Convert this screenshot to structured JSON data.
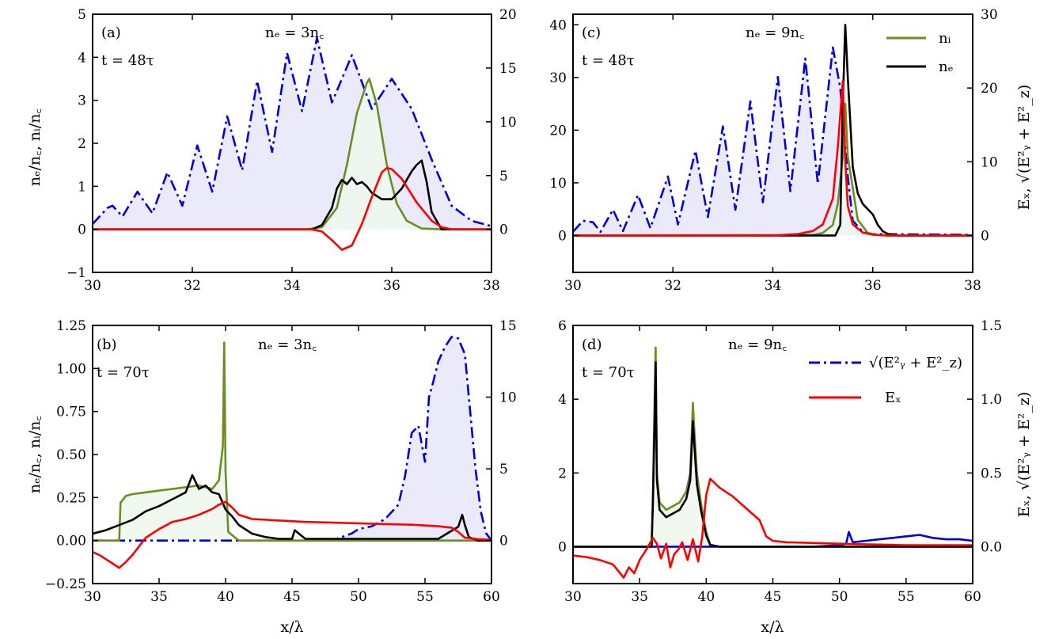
{
  "figure": {
    "xlabel": "x/λ",
    "ylabel_left": "nₑ/n꜀, nᵢ/n꜀",
    "ylabel_right": "Eₓ, √(E²ᵧ + E²_z)"
  },
  "legend_top": {
    "ni": "nᵢ",
    "ne": "nₑ"
  },
  "legend_bottom": {
    "field": "√(E²ᵧ + E²_z)",
    "ex": "Eₓ"
  },
  "colors": {
    "ni": "#6b8e23",
    "ne": "#000000",
    "ex": "#ff0000",
    "field": "#0000dd",
    "field_fill": "#e8e8fb",
    "ni_fill": "#eef7ee"
  },
  "chart_data": [
    {
      "panel": "a",
      "type": "line",
      "label": "(a)",
      "time": "t = 48τ",
      "density": "nₑ = 3n꜀",
      "xlim": [
        30,
        38
      ],
      "ylim_left": [
        -1,
        5
      ],
      "ylim_right": [
        -4,
        20
      ],
      "xticks": [
        30,
        32,
        34,
        36,
        38
      ],
      "yticks_left": [
        -1,
        0,
        1,
        2,
        3,
        4,
        5
      ],
      "yticks_right": [
        0,
        5,
        10,
        15,
        20
      ],
      "series": [
        {
          "name": "√(E²ᵧ + E²_z)",
          "axis": "right",
          "style": "dashdot",
          "fill": true,
          "x": [
            30.0,
            30.3,
            30.4,
            30.6,
            30.9,
            31.2,
            31.5,
            31.8,
            32.1,
            32.4,
            32.7,
            33.0,
            33.3,
            33.6,
            33.9,
            34.2,
            34.5,
            34.8,
            35.2,
            35.6,
            36.0,
            36.4,
            36.8,
            37.2,
            37.6,
            38.0
          ],
          "y": [
            0.5,
            2.0,
            2.2,
            1.2,
            3.5,
            1.5,
            5.3,
            2.2,
            7.8,
            3.5,
            10.5,
            5.5,
            13.8,
            7.2,
            16.4,
            11.0,
            17.8,
            11.8,
            16.2,
            11.2,
            14.0,
            11.2,
            6.5,
            2.2,
            0.8,
            0.3
          ]
        },
        {
          "name": "nᵢ",
          "axis": "left",
          "fill": true,
          "x": [
            30,
            34.3,
            34.6,
            34.9,
            35.1,
            35.3,
            35.5,
            35.55,
            35.7,
            35.9,
            36.1,
            36.3,
            36.6,
            37,
            38
          ],
          "y": [
            0,
            0,
            0.05,
            0.5,
            1.5,
            2.7,
            3.4,
            3.5,
            2.9,
            1.5,
            0.6,
            0.2,
            0.02,
            0,
            0
          ]
        },
        {
          "name": "nₑ",
          "axis": "left",
          "x": [
            30,
            34.4,
            34.6,
            34.8,
            34.9,
            35.0,
            35.1,
            35.2,
            35.3,
            35.4,
            35.5,
            35.6,
            35.8,
            36.0,
            36.2,
            36.4,
            36.5,
            36.6,
            36.7,
            36.8,
            37,
            38
          ],
          "y": [
            0,
            0,
            0.1,
            0.5,
            0.95,
            1.15,
            1.05,
            1.2,
            1.05,
            1.1,
            1.0,
            0.85,
            0.7,
            0.7,
            0.95,
            1.35,
            1.5,
            1.6,
            1.1,
            0.4,
            0,
            0
          ]
        },
        {
          "name": "Eₓ",
          "axis": "right",
          "x": [
            30,
            34.4,
            34.6,
            34.8,
            35.0,
            35.2,
            35.4,
            35.6,
            35.8,
            35.9,
            36.0,
            36.2,
            36.5,
            36.8,
            37.0,
            37.2,
            38
          ],
          "y": [
            0,
            0,
            -0.2,
            -1.0,
            -1.9,
            -1.5,
            0.5,
            3.0,
            5.3,
            5.7,
            5.6,
            4.7,
            2.5,
            0.8,
            0.2,
            0,
            0
          ]
        }
      ]
    },
    {
      "panel": "c",
      "type": "line",
      "label": "(c)",
      "time": "t = 48τ",
      "density": "nₑ = 9n꜀",
      "xlim": [
        30,
        38
      ],
      "ylim_left": [
        -7,
        42
      ],
      "ylim_right": [
        -5,
        30
      ],
      "xticks": [
        30,
        32,
        34,
        36,
        38
      ],
      "yticks_left": [
        0,
        10,
        20,
        30,
        40
      ],
      "yticks_right": [
        0,
        10,
        20,
        30
      ],
      "series": [
        {
          "name": "√(E²ᵧ + E²_z)",
          "axis": "right",
          "style": "dashdot",
          "fill": true,
          "x": [
            30.0,
            30.2,
            30.4,
            30.55,
            30.8,
            31.0,
            31.3,
            31.55,
            31.9,
            32.1,
            32.45,
            32.7,
            33.0,
            33.25,
            33.55,
            33.8,
            34.1,
            34.35,
            34.65,
            34.9,
            35.2,
            35.35,
            35.5,
            35.6,
            35.8,
            36.0,
            38.0
          ],
          "y": [
            0.5,
            2.0,
            1.8,
            0.5,
            3.5,
            0.6,
            5.5,
            1.0,
            8.0,
            1.5,
            11.5,
            2.5,
            14.8,
            3.5,
            18.2,
            4.5,
            21.5,
            6.0,
            24.0,
            7.0,
            25.5,
            20.0,
            8.0,
            2.0,
            0.5,
            0.2,
            0.1
          ]
        },
        {
          "name": "nᵢ",
          "axis": "left",
          "fill": true,
          "x": [
            30,
            34.8,
            35.0,
            35.2,
            35.3,
            35.4,
            35.45,
            35.5,
            35.7,
            35.9,
            36.1,
            36.3,
            38
          ],
          "y": [
            0,
            0.1,
            0.5,
            2,
            6,
            15,
            25,
            15,
            3,
            0.5,
            0.1,
            0,
            0
          ]
        },
        {
          "name": "nₑ",
          "axis": "left",
          "x": [
            30,
            35.25,
            35.35,
            35.4,
            35.45,
            35.5,
            35.6,
            35.7,
            35.8,
            35.9,
            36.0,
            36.1,
            36.2,
            36.3,
            36.5,
            38
          ],
          "y": [
            0,
            0,
            2,
            25,
            40,
            30,
            13,
            8,
            6,
            5,
            4,
            2,
            0.8,
            0.3,
            0,
            0
          ]
        },
        {
          "name": "Eₓ",
          "axis": "right",
          "x": [
            30,
            34.0,
            34.5,
            34.8,
            35.0,
            35.2,
            35.3,
            35.4,
            35.45,
            35.5,
            35.6,
            35.8,
            36.0,
            36.3,
            38
          ],
          "y": [
            0,
            0,
            0.2,
            0.6,
            1.5,
            5.0,
            12.0,
            21.0,
            10.0,
            4.0,
            1.5,
            0.4,
            0.1,
            0,
            0
          ]
        }
      ]
    },
    {
      "panel": "b",
      "type": "line",
      "label": "(b)",
      "time": "t = 70τ",
      "density": "nₑ = 3n꜀",
      "xlim": [
        30,
        60
      ],
      "ylim_left": [
        -0.25,
        1.25
      ],
      "ylim_right": [
        -3,
        15
      ],
      "xticks": [
        30,
        35,
        40,
        45,
        50,
        55,
        60
      ],
      "yticks_left": [
        -0.25,
        0.0,
        0.25,
        0.5,
        0.75,
        1.0,
        1.25
      ],
      "ytick_labels_left": [
        "−0.25",
        "0.00",
        "0.25",
        "0.50",
        "0.75",
        "1.00",
        "1.25"
      ],
      "yticks_right": [
        0,
        5,
        10,
        15
      ],
      "series": [
        {
          "name": "√(E²ᵧ + E²_z)",
          "axis": "right",
          "style": "dashdot",
          "fill": true,
          "x": [
            30,
            40,
            45,
            48,
            49.5,
            50,
            51,
            52,
            53,
            53.5,
            54,
            54.5,
            55,
            55.3,
            55.6,
            56,
            56.5,
            57,
            57.5,
            58,
            58.3,
            58.8,
            59.2,
            59.6,
            60
          ],
          "y": [
            0,
            0,
            0,
            0,
            0.5,
            0.8,
            1.0,
            1.5,
            2.5,
            4.5,
            7.5,
            8.0,
            5.5,
            10.0,
            11.0,
            12.5,
            13.5,
            14.2,
            14.1,
            13.0,
            10.0,
            5.0,
            2.0,
            0.5,
            0
          ]
        },
        {
          "name": "nᵢ",
          "axis": "left",
          "fill": true,
          "x": [
            30,
            32,
            32.1,
            32.5,
            33,
            34,
            35,
            36,
            37,
            38,
            39,
            39.5,
            39.8,
            39.9,
            40.0,
            40.2,
            41,
            60
          ],
          "y": [
            0,
            0,
            0.22,
            0.26,
            0.27,
            0.28,
            0.29,
            0.3,
            0.31,
            0.32,
            0.3,
            0.35,
            0.55,
            1.15,
            0.4,
            0.05,
            0,
            0
          ]
        },
        {
          "name": "nₑ",
          "axis": "left",
          "x": [
            30,
            31,
            32,
            33,
            34,
            35,
            36,
            37,
            37.5,
            38,
            38.5,
            39,
            39.5,
            40,
            40.5,
            41,
            42,
            43,
            44,
            45,
            45.2,
            46,
            48,
            50,
            52,
            54,
            56,
            57.5,
            57.8,
            58,
            58.3,
            59,
            60
          ],
          "y": [
            0.04,
            0.06,
            0.09,
            0.12,
            0.17,
            0.2,
            0.24,
            0.28,
            0.38,
            0.3,
            0.32,
            0.28,
            0.27,
            0.18,
            0.14,
            0.09,
            0.04,
            0.02,
            0.01,
            0.01,
            0.06,
            0.01,
            0.01,
            0.01,
            0.01,
            0.01,
            0.01,
            0.08,
            0.15,
            0.09,
            0.02,
            0,
            0
          ]
        },
        {
          "name": "Eₓ",
          "axis": "right",
          "x": [
            30,
            30.5,
            31,
            31.5,
            32,
            32.5,
            33,
            33.5,
            34,
            35,
            36,
            37,
            38,
            39,
            39.5,
            40,
            40.5,
            41,
            42,
            44,
            46,
            48,
            50,
            52,
            54,
            56,
            57,
            57.5,
            58,
            59,
            60
          ],
          "y": [
            -0.8,
            -1.0,
            -1.3,
            -1.6,
            -1.9,
            -1.5,
            -1.0,
            -0.4,
            0.2,
            0.8,
            1.3,
            1.5,
            1.8,
            2.2,
            2.5,
            2.7,
            2.3,
            1.8,
            1.5,
            1.4,
            1.3,
            1.25,
            1.2,
            1.15,
            1.1,
            1.0,
            0.9,
            0.6,
            0.2,
            0.1,
            0.05
          ]
        }
      ]
    },
    {
      "panel": "d",
      "type": "line",
      "label": "(d)",
      "time": "t = 70τ",
      "density": "nₑ = 9n꜀",
      "xlim": [
        30,
        60
      ],
      "ylim_left": [
        -1,
        6
      ],
      "ylim_right": [
        -0.25,
        1.5
      ],
      "xticks": [
        30,
        35,
        40,
        45,
        50,
        55,
        60
      ],
      "yticks_left": [
        0,
        2,
        4,
        6
      ],
      "yticks_right": [
        0.0,
        0.5,
        1.0,
        1.5
      ],
      "ytick_labels_right": [
        "0.0",
        "0.5",
        "1.0",
        "1.5"
      ],
      "series": [
        {
          "name": "√(E²ᵧ + E²_z)",
          "axis": "right",
          "style": "solid",
          "fill": false,
          "x": [
            30,
            35,
            40,
            45,
            48,
            50,
            50.5,
            50.7,
            51,
            52,
            53,
            54,
            55,
            56,
            57,
            58,
            59,
            60
          ],
          "y": [
            0,
            0,
            0,
            0,
            0,
            0.01,
            0.02,
            0.1,
            0.03,
            0.04,
            0.05,
            0.06,
            0.07,
            0.08,
            0.06,
            0.05,
            0.05,
            0.04
          ]
        },
        {
          "name": "nᵢ",
          "axis": "left",
          "fill": true,
          "x": [
            30,
            35.9,
            36.0,
            36.1,
            36.2,
            36.3,
            36.5,
            37,
            37.5,
            38,
            38.5,
            38.8,
            39,
            39.1,
            39.3,
            39.6,
            40,
            40.3,
            41,
            60
          ],
          "y": [
            0,
            0,
            1.5,
            3.5,
            5.4,
            2.0,
            1.2,
            1.0,
            1.1,
            1.2,
            1.5,
            2.0,
            3.9,
            3.2,
            2.0,
            1.2,
            0.4,
            0.05,
            0,
            0
          ]
        },
        {
          "name": "nₑ",
          "axis": "left",
          "x": [
            30,
            35.9,
            36.0,
            36.1,
            36.2,
            36.3,
            36.5,
            37,
            37.5,
            38,
            38.5,
            38.8,
            39,
            39.1,
            39.3,
            39.6,
            40,
            40.3,
            41,
            60
          ],
          "y": [
            0,
            0,
            1.2,
            3.0,
            5.0,
            1.8,
            1.0,
            0.8,
            0.9,
            1.0,
            1.3,
            1.8,
            3.4,
            2.8,
            1.7,
            1.0,
            0.3,
            0.05,
            0,
            0
          ]
        },
        {
          "name": "Eₓ",
          "axis": "right",
          "x": [
            30,
            31,
            32,
            33,
            33.8,
            34.2,
            34.6,
            35,
            35.5,
            36,
            36.3,
            36.6,
            37,
            37.3,
            37.6,
            37.9,
            38.2,
            38.6,
            39,
            39.4,
            39.7,
            40,
            40.3,
            41,
            42,
            43,
            44,
            44.5,
            45,
            46,
            50,
            55,
            60
          ],
          "y": [
            -0.06,
            -0.07,
            -0.09,
            -0.12,
            -0.21,
            -0.14,
            -0.18,
            -0.09,
            -0.02,
            0.06,
            0.02,
            -0.08,
            0.02,
            -0.14,
            -0.05,
            -0.02,
            0.03,
            -0.09,
            0.05,
            -0.1,
            0.07,
            0.35,
            0.46,
            0.4,
            0.34,
            0.26,
            0.18,
            0.07,
            0.04,
            0.03,
            0.02,
            0.01,
            0.01
          ]
        }
      ]
    }
  ]
}
